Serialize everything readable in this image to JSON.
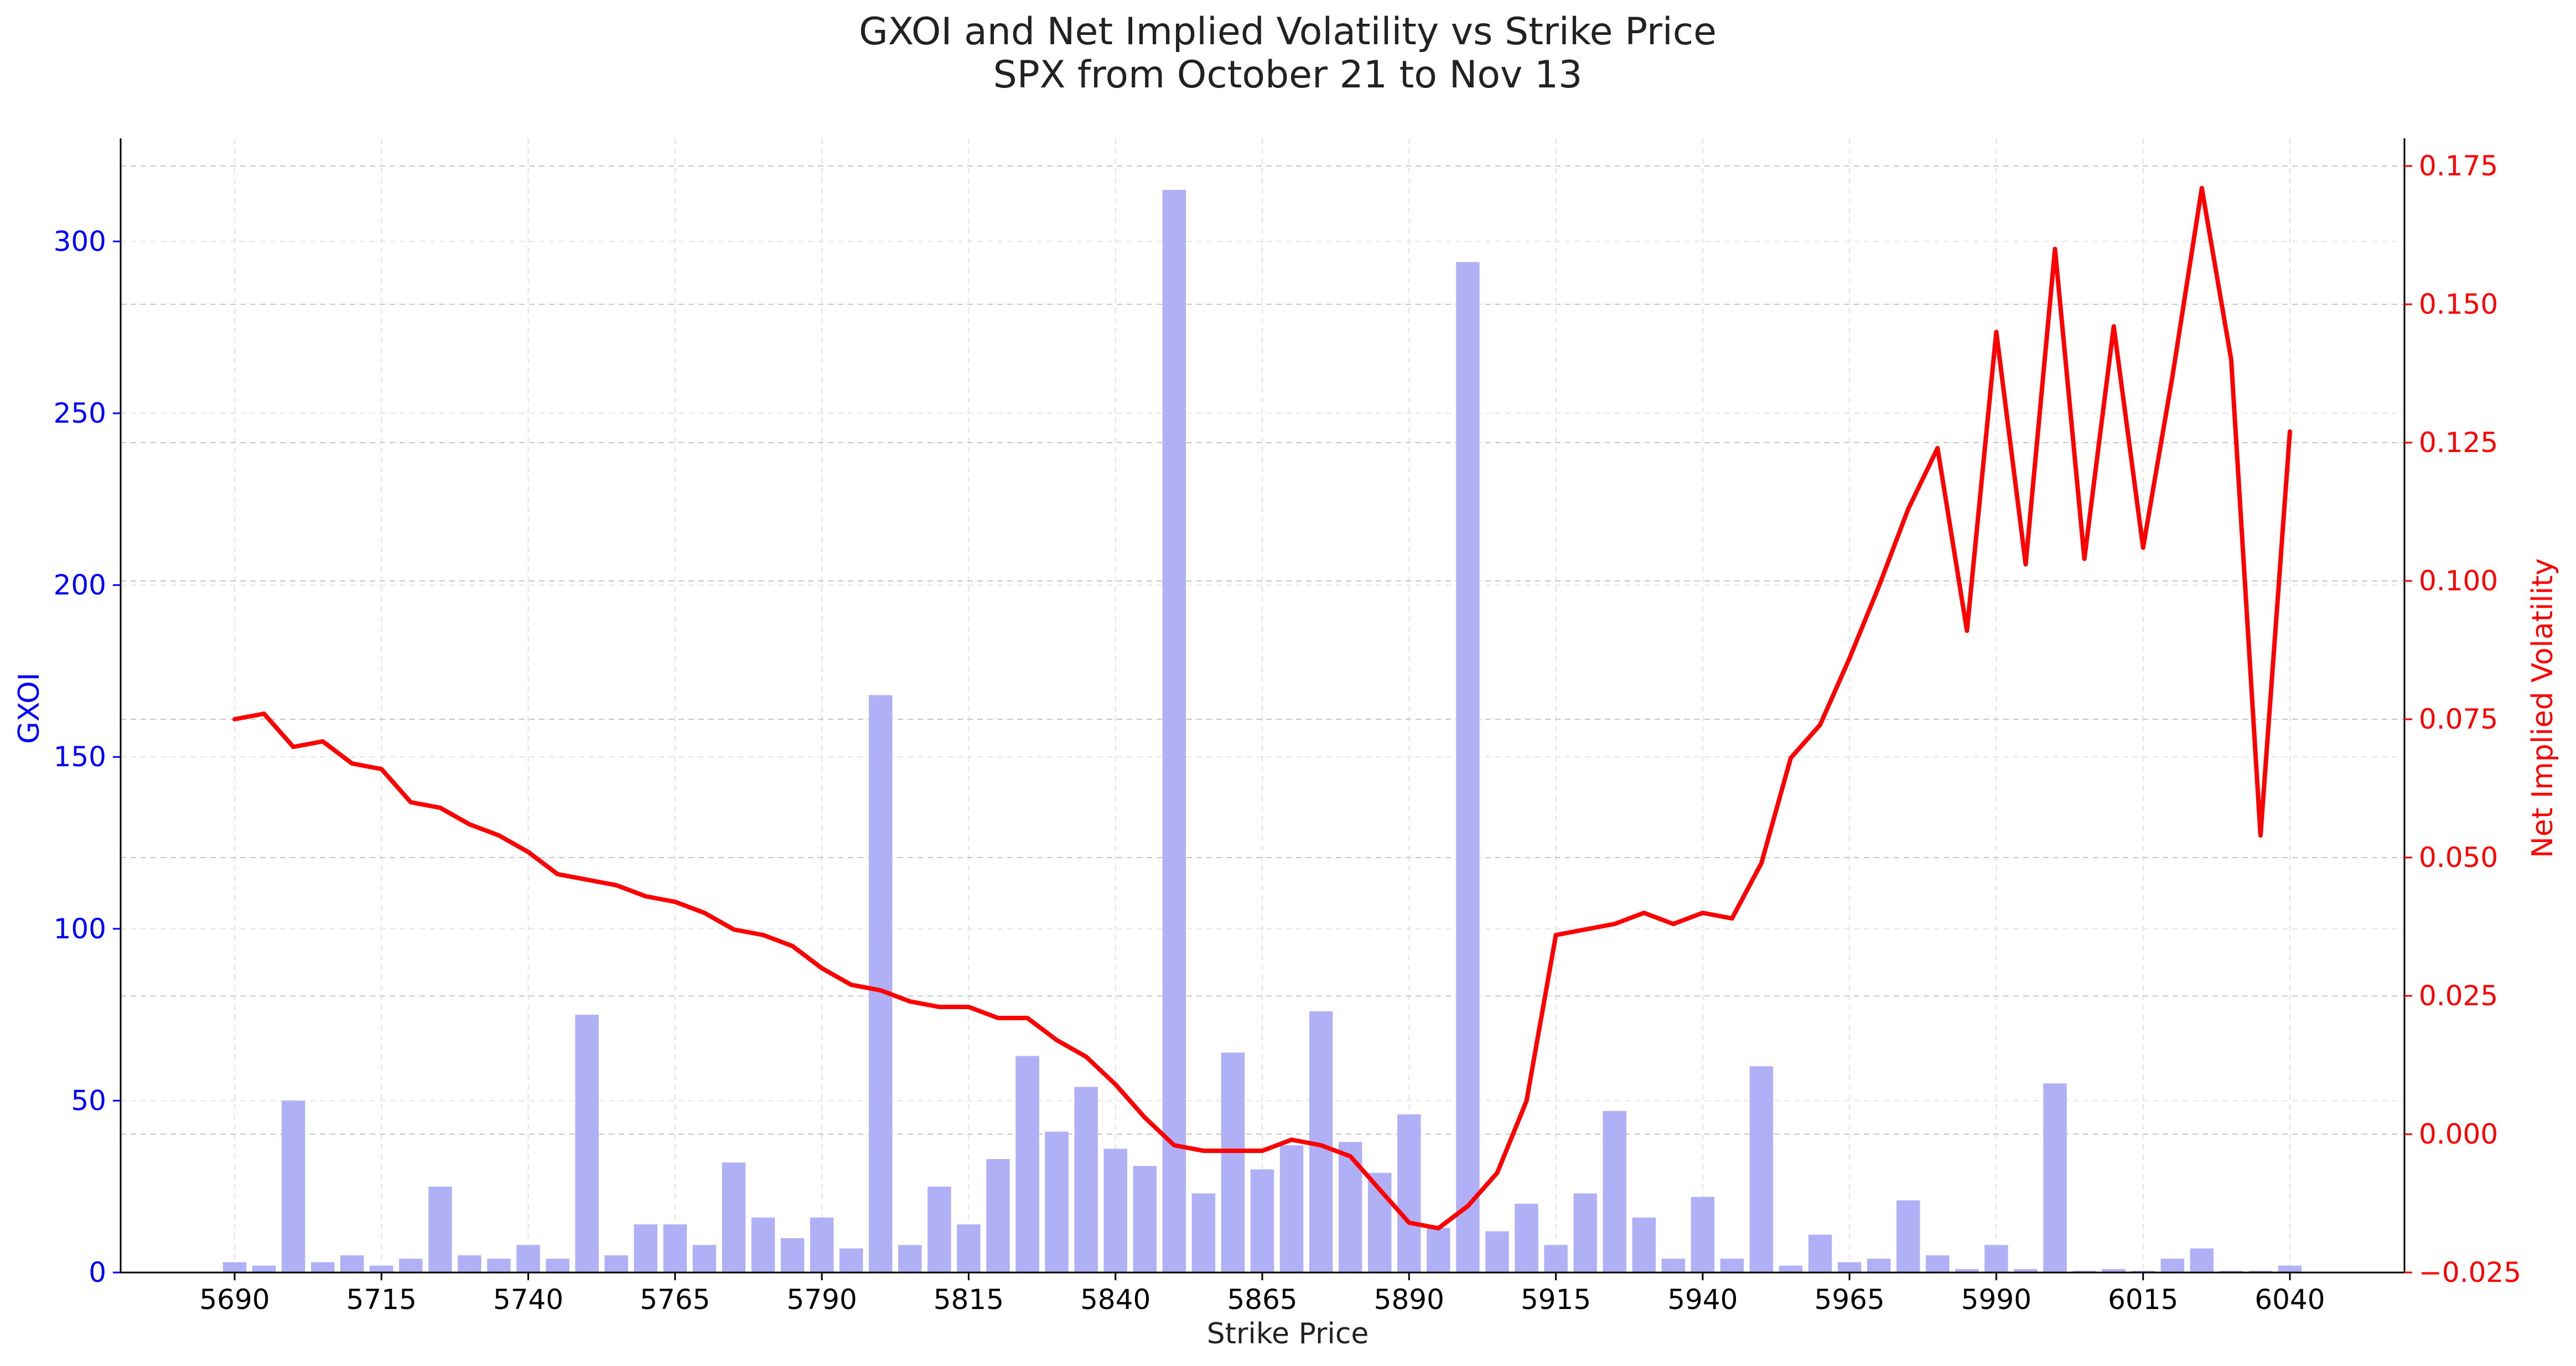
{
  "chart_data": {
    "type": "bar+line",
    "title": "GXOI and Net Implied Volatility vs Strike Price",
    "subtitle": "SPX from October 21 to Nov 13",
    "xlabel": "Strike Price",
    "ylabel_left": "GXOI",
    "ylabel_right": "Net Implied Volatility",
    "x_ticks": [
      "5690",
      "5715",
      "5740",
      "5765",
      "5790",
      "5815",
      "5840",
      "5865",
      "5890",
      "5915",
      "5940",
      "5965",
      "5990",
      "6015",
      "6040"
    ],
    "y_left_ticks": [
      "0",
      "50",
      "100",
      "150",
      "200",
      "250",
      "300"
    ],
    "y_right_ticks": [
      "−0.025",
      "0.000",
      "0.025",
      "0.050",
      "0.075",
      "0.100",
      "0.125",
      "0.150",
      "0.175"
    ],
    "ylim_left": [
      0,
      330
    ],
    "ylim_right": [
      -0.025,
      0.18
    ],
    "xlim": [
      5690,
      6040
    ],
    "grid": true,
    "colors": {
      "bars": "#b0b0f7",
      "line": "#ff0000",
      "left_axis": "#0000ff",
      "right_axis": "#ff0000"
    },
    "x": [
      5690,
      5695,
      5700,
      5705,
      5710,
      5715,
      5720,
      5725,
      5730,
      5735,
      5740,
      5745,
      5750,
      5755,
      5760,
      5765,
      5770,
      5775,
      5780,
      5785,
      5790,
      5795,
      5800,
      5805,
      5810,
      5815,
      5820,
      5825,
      5830,
      5835,
      5840,
      5845,
      5850,
      5855,
      5860,
      5865,
      5870,
      5875,
      5880,
      5885,
      5890,
      5895,
      5900,
      5905,
      5910,
      5915,
      5920,
      5925,
      5930,
      5935,
      5940,
      5945,
      5950,
      5955,
      5960,
      5965,
      5970,
      5975,
      5980,
      5985,
      5990,
      5995,
      6000,
      6005,
      6010,
      6015,
      6020,
      6025,
      6030,
      6035,
      6040
    ],
    "series": [
      {
        "name": "GXOI",
        "kind": "bar",
        "axis": "left",
        "values": [
          3,
          2,
          50,
          3,
          5,
          2,
          4,
          25,
          5,
          4,
          8,
          4,
          75,
          5,
          14,
          14,
          8,
          32,
          16,
          10,
          16,
          7,
          168,
          8,
          25,
          14,
          33,
          63,
          41,
          54,
          36,
          31,
          315,
          23,
          64,
          30,
          37,
          76,
          38,
          29,
          46,
          13,
          294,
          12,
          20,
          8,
          23,
          47,
          16,
          4,
          22,
          4,
          60,
          2,
          11,
          3,
          4,
          21,
          5,
          1,
          8,
          1,
          55,
          0.5,
          1,
          0.5,
          4,
          7,
          0.5,
          0.5,
          2
        ]
      },
      {
        "name": "Net Implied Volatility",
        "kind": "line",
        "axis": "right",
        "values": [
          0.075,
          0.076,
          0.07,
          0.071,
          0.067,
          0.066,
          0.06,
          0.059,
          0.056,
          0.054,
          0.051,
          0.047,
          0.046,
          0.045,
          0.043,
          0.042,
          0.04,
          0.037,
          0.036,
          0.034,
          0.03,
          0.027,
          0.026,
          0.024,
          0.023,
          0.023,
          0.021,
          0.021,
          0.017,
          0.014,
          0.009,
          0.003,
          -0.002,
          -0.003,
          -0.003,
          -0.003,
          -0.001,
          -0.002,
          -0.004,
          -0.01,
          -0.016,
          -0.017,
          -0.013,
          -0.007,
          0.006,
          0.036,
          0.037,
          0.038,
          0.04,
          0.038,
          0.04,
          0.039,
          0.049,
          0.068,
          0.074,
          0.086,
          0.099,
          0.113,
          0.124,
          0.091,
          0.145,
          0.103,
          0.16,
          0.104,
          0.146,
          0.106,
          0.137,
          0.171,
          0.14,
          0.054,
          0.127
        ]
      }
    ]
  }
}
